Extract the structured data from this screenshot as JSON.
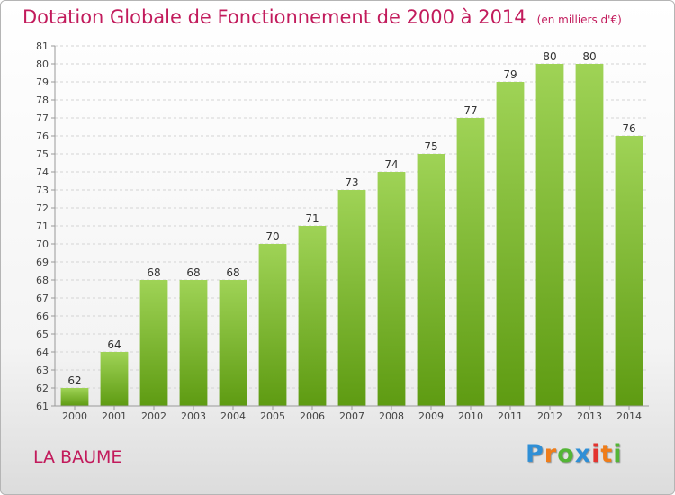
{
  "header": {
    "title": "Dotation Globale de Fonctionnement de 2000 à 2014",
    "unit": "(en milliers d'€)"
  },
  "footer": {
    "commune": "LA BAUME",
    "logo": "Proxiti"
  },
  "colors": {
    "title": "#c21b5c",
    "bar_top": "#9fd356",
    "bar_bottom": "#5e9b12",
    "logo": [
      "#2f8fd6",
      "#ef7d1a",
      "#54b536",
      "#2f8fd6",
      "#e3342f",
      "#ef7d1a",
      "#54b536"
    ]
  },
  "chart_data": {
    "type": "bar",
    "title": "Dotation Globale de Fonctionnement de 2000 à 2014",
    "subtitle": "(en milliers d'€)",
    "xlabel": "",
    "ylabel": "",
    "categories": [
      "2000",
      "2001",
      "2002",
      "2003",
      "2004",
      "2005",
      "2006",
      "2007",
      "2008",
      "2009",
      "2010",
      "2011",
      "2012",
      "2013",
      "2014"
    ],
    "values": [
      62,
      64,
      68,
      68,
      68,
      70,
      71,
      73,
      74,
      75,
      77,
      79,
      80,
      80,
      76
    ],
    "ylim": [
      61,
      81
    ],
    "ytick_step": 1,
    "grid": true,
    "data_labels": true,
    "legend": "none"
  }
}
